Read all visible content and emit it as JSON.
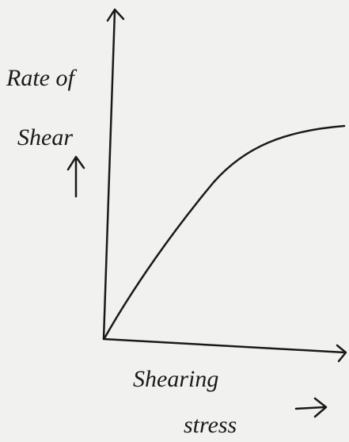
{
  "y_axis_label": {
    "line1": "Rate of",
    "line2": "Shear"
  },
  "x_axis_label": {
    "line1": "Shearing",
    "line2": "stress"
  }
}
